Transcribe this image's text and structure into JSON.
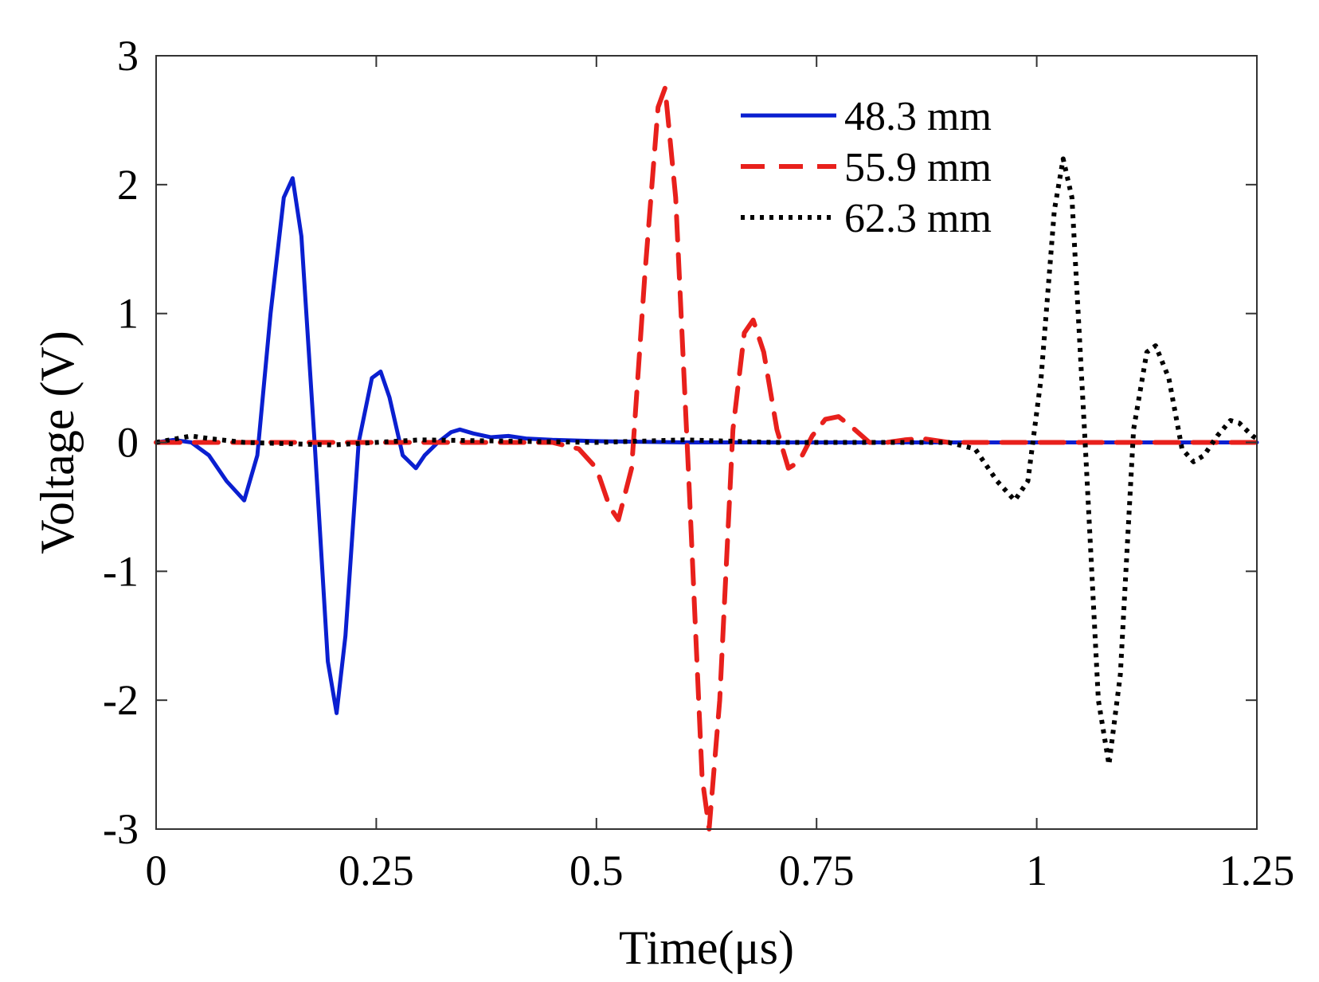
{
  "chart_data": {
    "type": "line",
    "title": "",
    "xlabel": "Time(μs)",
    "ylabel": "Voltage (V)",
    "xlim": [
      0,
      1.25
    ],
    "ylim": [
      -3,
      3
    ],
    "xticks": [
      0,
      0.25,
      0.5,
      0.75,
      1,
      1.25
    ],
    "xtick_labels": [
      "0",
      "0.25",
      "0.5",
      "0.75",
      "1",
      "1.25"
    ],
    "yticks": [
      -3,
      -2,
      -1,
      0,
      1,
      2,
      3
    ],
    "ytick_labels": [
      "-3",
      "-2",
      "-1",
      "0",
      "1",
      "2",
      "3"
    ],
    "grid": false,
    "legend_position": "top-right",
    "series": [
      {
        "name": "48.3 mm",
        "color": "#0a1fd0",
        "style": "solid",
        "x": [
          0,
          0.02,
          0.04,
          0.06,
          0.08,
          0.1,
          0.115,
          0.13,
          0.145,
          0.155,
          0.165,
          0.18,
          0.195,
          0.205,
          0.215,
          0.23,
          0.245,
          0.255,
          0.265,
          0.28,
          0.295,
          0.305,
          0.32,
          0.335,
          0.345,
          0.36,
          0.38,
          0.4,
          0.42,
          0.45,
          0.5,
          0.6,
          0.7,
          0.8,
          0.9,
          1.0,
          1.1,
          1.2,
          1.25
        ],
        "y": [
          0,
          0.02,
          0.0,
          -0.1,
          -0.3,
          -0.45,
          -0.1,
          1.0,
          1.9,
          2.05,
          1.6,
          0.0,
          -1.7,
          -2.1,
          -1.5,
          0.0,
          0.5,
          0.55,
          0.35,
          -0.1,
          -0.2,
          -0.1,
          0.0,
          0.08,
          0.1,
          0.07,
          0.04,
          0.05,
          0.03,
          0.02,
          0.01,
          0.0,
          0.0,
          0.0,
          0.0,
          0.0,
          0.0,
          0.0,
          0.0
        ]
      },
      {
        "name": "55.9 mm",
        "color": "#e8201c",
        "style": "dashed",
        "x": [
          0,
          0.1,
          0.2,
          0.3,
          0.4,
          0.45,
          0.48,
          0.5,
          0.515,
          0.525,
          0.54,
          0.555,
          0.57,
          0.578,
          0.59,
          0.605,
          0.62,
          0.628,
          0.64,
          0.655,
          0.668,
          0.678,
          0.69,
          0.705,
          0.718,
          0.73,
          0.745,
          0.76,
          0.775,
          0.79,
          0.81,
          0.83,
          0.85,
          0.87,
          0.9,
          1.0,
          1.1,
          1.2,
          1.25
        ],
        "y": [
          0,
          0,
          0,
          0,
          0,
          0.0,
          -0.05,
          -0.2,
          -0.5,
          -0.6,
          -0.2,
          1.3,
          2.6,
          2.75,
          1.9,
          -0.3,
          -2.6,
          -3.0,
          -2.0,
          0.1,
          0.85,
          0.95,
          0.7,
          0.1,
          -0.2,
          -0.15,
          0.05,
          0.18,
          0.2,
          0.12,
          0.0,
          0.0,
          0.02,
          0.03,
          0.0,
          0.0,
          0.0,
          0.0,
          0.0
        ]
      },
      {
        "name": "62.3 mm",
        "color": "#000000",
        "style": "dotted",
        "x": [
          0,
          0.04,
          0.06,
          0.1,
          0.2,
          0.3,
          0.4,
          0.5,
          0.6,
          0.7,
          0.8,
          0.9,
          0.93,
          0.955,
          0.975,
          0.99,
          1.005,
          1.02,
          1.03,
          1.04,
          1.055,
          1.07,
          1.082,
          1.095,
          1.11,
          1.125,
          1.135,
          1.15,
          1.165,
          1.178,
          1.19,
          1.205,
          1.22,
          1.23,
          1.245,
          1.25
        ],
        "y": [
          0,
          0.05,
          0.03,
          0.0,
          -0.02,
          0.02,
          0.01,
          0.0,
          0.02,
          0.0,
          0.0,
          0.0,
          -0.05,
          -0.3,
          -0.45,
          -0.3,
          0.5,
          1.8,
          2.2,
          1.9,
          0.0,
          -2.0,
          -2.5,
          -1.8,
          0.1,
          0.7,
          0.75,
          0.5,
          -0.05,
          -0.15,
          -0.1,
          0.05,
          0.17,
          0.15,
          0.05,
          0.03
        ]
      }
    ]
  }
}
